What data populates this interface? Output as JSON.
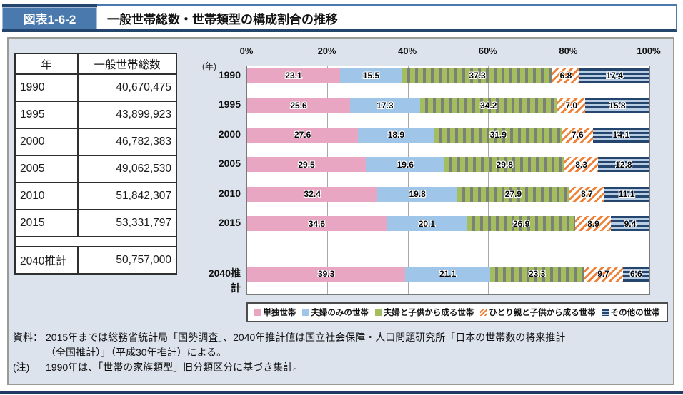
{
  "header": {
    "figure_label": "図表1-6-2",
    "title": "一般世帯総数・世帯類型の構成割合の推移"
  },
  "table": {
    "columns": [
      "年",
      "一般世帯総数"
    ],
    "rows": [
      [
        "1990",
        "40,670,475"
      ],
      [
        "1995",
        "43,899,923"
      ],
      [
        "2000",
        "46,782,383"
      ],
      [
        "2005",
        "49,062,530"
      ],
      [
        "2010",
        "51,842,307"
      ],
      [
        "2015",
        "53,331,797"
      ]
    ],
    "projection_row": [
      "2040推計",
      "50,757,000"
    ]
  },
  "chart_data": {
    "type": "bar",
    "orientation": "horizontal-stacked",
    "axis_unit_label": "(年)",
    "x_ticks": [
      "0%",
      "20%",
      "40%",
      "60%",
      "80%",
      "100%"
    ],
    "xlim": [
      0,
      100
    ],
    "grid": true,
    "legend_position": "bottom",
    "categories": [
      "1990",
      "1995",
      "2000",
      "2005",
      "2010",
      "2015",
      "2040推計"
    ],
    "series": [
      {
        "name": "単独世帯",
        "color": "#e9a6c2",
        "pattern": "solid",
        "values": [
          23.1,
          25.6,
          27.6,
          29.5,
          32.4,
          34.6,
          39.3
        ]
      },
      {
        "name": "夫婦のみの世帯",
        "color": "#9fc5e8",
        "pattern": "solid",
        "values": [
          15.5,
          17.3,
          18.9,
          19.6,
          19.8,
          20.1,
          21.1
        ]
      },
      {
        "name": "夫婦と子供から成る世帯",
        "color": "#a4bd5e",
        "pattern": "vertical-stripes",
        "values": [
          37.3,
          34.2,
          31.9,
          29.8,
          27.9,
          26.9,
          23.3
        ]
      },
      {
        "name": "ひとり親と子供から成る世帯",
        "color": "#ef8238",
        "pattern": "diagonal-stripes",
        "values": [
          6.8,
          7.0,
          7.6,
          8.3,
          8.7,
          8.9,
          9.7
        ]
      },
      {
        "name": "その他の世帯",
        "color": "#24456e",
        "pattern": "horizontal-stripes",
        "values": [
          17.4,
          15.8,
          14.1,
          12.8,
          11.1,
          9.4,
          6.6
        ]
      }
    ]
  },
  "footer": {
    "source_label": "資料：",
    "source_line1": "2015年までは総務省統計局「国勢調査」、2040年推計値は国立社会保障・人口問題研究所「日本の世帯数の将来推計",
    "source_line2": "（全国推計）」（平成30年推計）による。",
    "note_label": "(注)",
    "note_text": "1990年は、「世帯の家族類型」旧分類区分に基づき集計。"
  },
  "colors": {
    "header_blue": "#4a79ad",
    "header_navy": "#24466e",
    "panel_background": "#dce3ed",
    "bottom_rule_navy": "#1f3a64"
  }
}
